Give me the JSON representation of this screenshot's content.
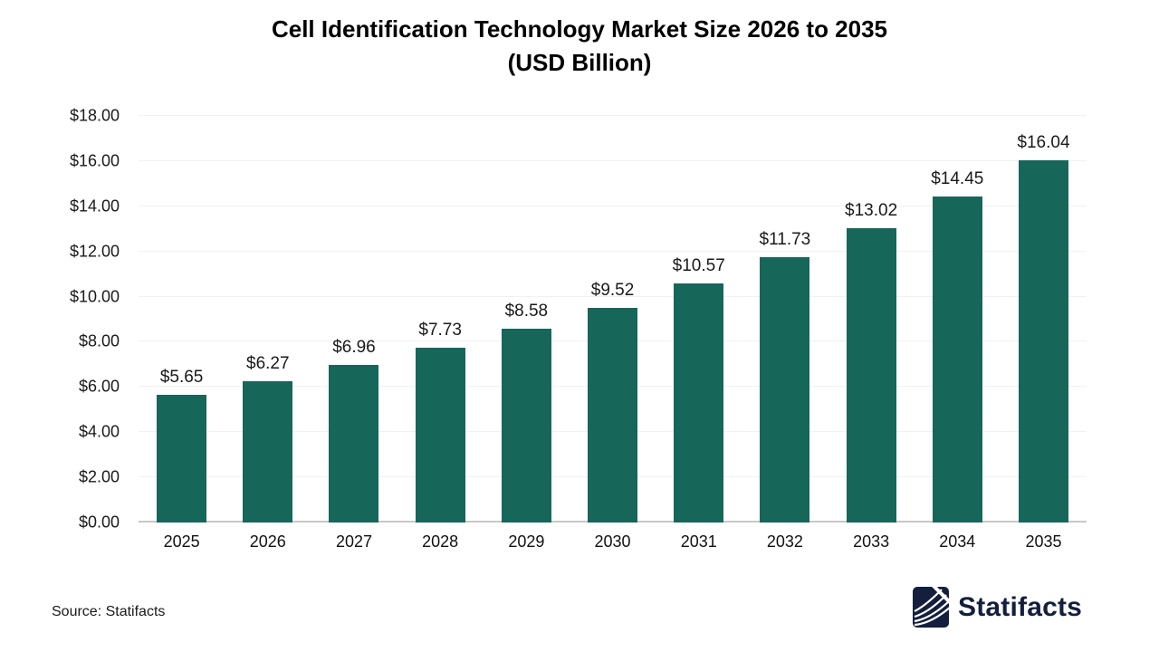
{
  "title": {
    "line1": "Cell Identification Technology Market Size 2026 to 2035",
    "line2": "(USD Billion)"
  },
  "chart_data": {
    "type": "bar",
    "title": "Cell Identification Technology Market Size 2026 to 2035 (USD Billion)",
    "categories": [
      "2025",
      "2026",
      "2027",
      "2028",
      "2029",
      "2030",
      "2031",
      "2032",
      "2033",
      "2034",
      "2035"
    ],
    "values": [
      5.65,
      6.27,
      6.96,
      7.73,
      8.58,
      9.52,
      10.57,
      11.73,
      13.02,
      14.45,
      16.04
    ],
    "value_labels": [
      "$5.65",
      "$6.27",
      "$6.96",
      "$7.73",
      "$8.58",
      "$9.52",
      "$10.57",
      "$11.73",
      "$13.02",
      "$14.45",
      "$16.04"
    ],
    "xlabel": "",
    "ylabel": "",
    "ylim": [
      0,
      18
    ],
    "ytick_values": [
      0,
      2,
      4,
      6,
      8,
      10,
      12,
      14,
      16,
      18
    ],
    "ytick_labels": [
      "$0.00",
      "$2.00",
      "$4.00",
      "$6.00",
      "$8.00",
      "$10.00",
      "$12.00",
      "$14.00",
      "$16.00",
      "$18.00"
    ],
    "grid": true,
    "legend_position": "none",
    "bar_color": "#17665A"
  },
  "colors": {
    "bar": "#17665A",
    "gridline": "#f0f1f1",
    "baseline": "#c8c8c8",
    "brand_navy": "#141f3d",
    "text": "#1a1a1a"
  },
  "footer": {
    "source_text": "Source: Statifacts",
    "logo_text": "Statifacts",
    "logo_icon": "statifacts-waves-icon"
  }
}
